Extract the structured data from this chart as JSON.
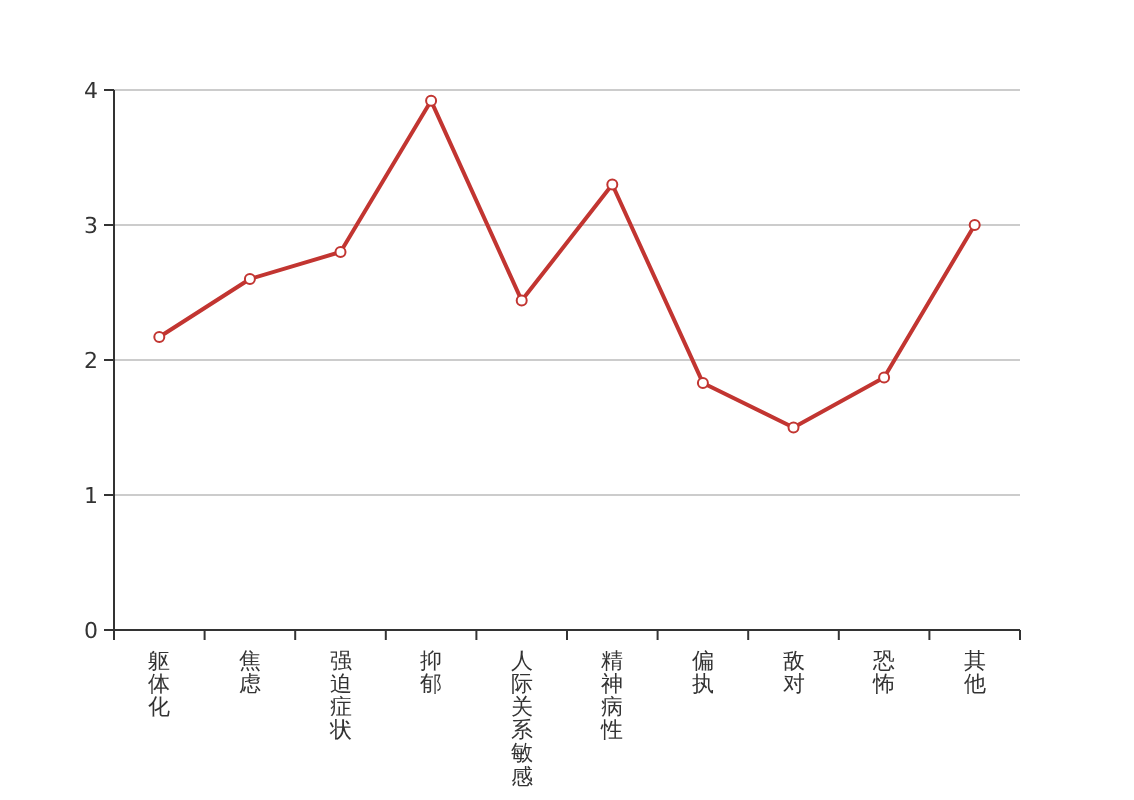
{
  "chart_data": {
    "type": "line",
    "categories": [
      "躯体化",
      "焦虑",
      "强迫症状",
      "抑郁",
      "人际关系敏感",
      "精神病性",
      "偏执",
      "敌对",
      "恐怖",
      "其他"
    ],
    "series": [
      {
        "color": "#c23531",
        "values": [
          2.17,
          2.6,
          2.8,
          3.92,
          2.44,
          3.3,
          1.83,
          1.5,
          1.87,
          3.0
        ]
      }
    ],
    "ylim": [
      0,
      4
    ],
    "yticks": [
      0,
      1,
      2,
      3,
      4
    ],
    "grid": "y",
    "marker": "circle",
    "line_style": "solid"
  }
}
